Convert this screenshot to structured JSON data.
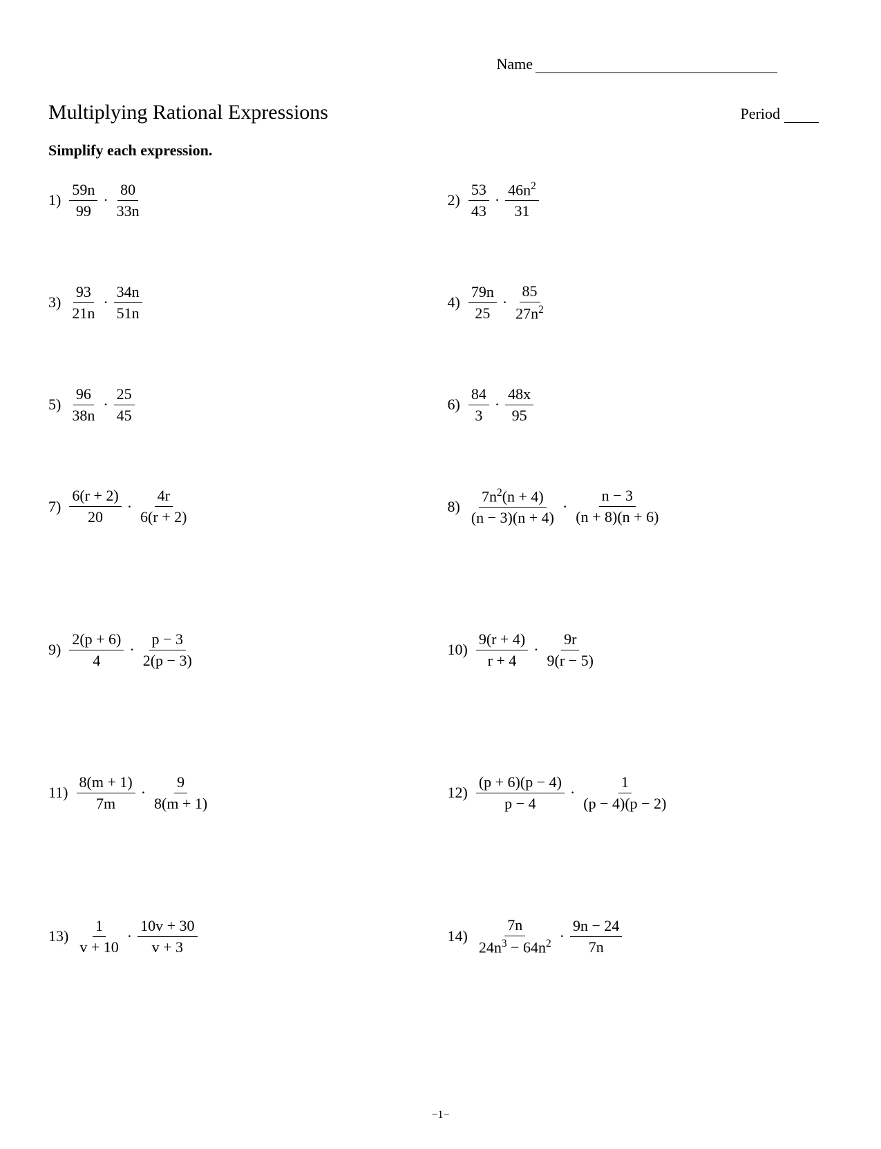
{
  "header": {
    "name_label": "Name",
    "period_label": "Period"
  },
  "title": "Multiplying Rational Expressions",
  "instructions": "Simplify each expression.",
  "problems": {
    "p1": {
      "num": "1)",
      "f1n": "59n",
      "f1d": "99",
      "f2n": "80",
      "f2d": "33n"
    },
    "p2": {
      "num": "2)",
      "f1n": "53",
      "f1d": "43",
      "f2n_pre": "46n",
      "f2n_sup": "2",
      "f2d": "31"
    },
    "p3": {
      "num": "3)",
      "f1n": "93",
      "f1d": "21n",
      "f2n": "34n",
      "f2d": "51n"
    },
    "p4": {
      "num": "4)",
      "f1n": "79n",
      "f1d": "25",
      "f2n": "85",
      "f2d_pre": "27n",
      "f2d_sup": "2"
    },
    "p5": {
      "num": "5)",
      "f1n": "96",
      "f1d": "38n",
      "f2n": "25",
      "f2d": "45"
    },
    "p6": {
      "num": "6)",
      "f1n": "84",
      "f1d": "3",
      "f2n": "48x",
      "f2d": "95"
    },
    "p7": {
      "num": "7)",
      "f1n": "6(r + 2)",
      "f1d": "20",
      "f2n": "4r",
      "f2d": "6(r + 2)"
    },
    "p8": {
      "num": "8)",
      "f1n_pre": "7n",
      "f1n_sup": "2",
      "f1n_post": "(n + 4)",
      "f1d": "(n − 3)(n + 4)",
      "f2n": "n − 3",
      "f2d": "(n + 8)(n + 6)"
    },
    "p9": {
      "num": "9)",
      "f1n": "2(p + 6)",
      "f1d": "4",
      "f2n": "p − 3",
      "f2d": "2(p − 3)"
    },
    "p10": {
      "num": "10)",
      "f1n": "9(r + 4)",
      "f1d": "r + 4",
      "f2n": "9r",
      "f2d": "9(r − 5)"
    },
    "p11": {
      "num": "11)",
      "f1n": "8(m + 1)",
      "f1d": "7m",
      "f2n": "9",
      "f2d": "8(m + 1)"
    },
    "p12": {
      "num": "12)",
      "f1n": "(p + 6)(p − 4)",
      "f1d": "p − 4",
      "f2n": "1",
      "f2d": "(p − 4)(p − 2)"
    },
    "p13": {
      "num": "13)",
      "f1n": "1",
      "f1d": "v + 10",
      "f2n": "10v + 30",
      "f2d": "v + 3"
    },
    "p14": {
      "num": "14)",
      "f1n": "7n",
      "f1d_a": "24n",
      "f1d_asup": "3",
      "f1d_mid": " − 64n",
      "f1d_bsup": "2",
      "f2n": "9n − 24",
      "f2d": "7n"
    }
  },
  "page_number": "−1−",
  "dot": "·"
}
